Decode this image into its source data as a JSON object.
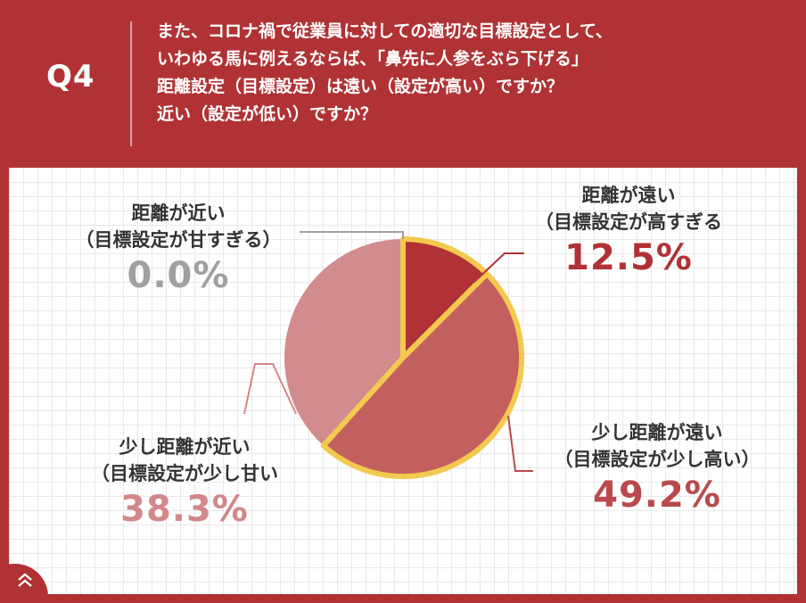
{
  "header": {
    "q_label": "Q4",
    "question_lines": [
      "また、コロナ禍で従業員に対しての適切な目標設定として、",
      "いわゆる馬に例えるならば、「鼻先に人参をぶら下げる」",
      "距離設定（目標設定）は遠い（設定が高い）ですか？",
      "近い（設定が低い）ですか？"
    ]
  },
  "chart_data": {
    "type": "pie",
    "start": "12 o'clock",
    "direction": "clockwise",
    "slices": [
      {
        "line1": "距離が遠い",
        "line2": "（目標設定が高すぎる",
        "value": 12.5,
        "value_label": "12.5%",
        "color": "#b03234",
        "label_color": "#b03234"
      },
      {
        "line1": "少し距離が遠い",
        "line2": "（目標設定が少し高い）",
        "value": 49.2,
        "value_label": "49.2%",
        "color": "#c45f5f",
        "label_color": "#b84a4c"
      },
      {
        "line1": "少し距離が近い",
        "line2": "（目標設定が少し甘い",
        "value": 38.3,
        "value_label": "38.3%",
        "color": "#d28c8d",
        "label_color": "#d28789"
      },
      {
        "line1": "距離が近い",
        "line2": "（目標設定が甘すぎる）",
        "value": 0.0,
        "value_label": "0.0%",
        "color": "#a0a0a0",
        "label_color": "#a0a0a0"
      }
    ],
    "highlight_border_color": "#f3c94f",
    "grid": true
  }
}
